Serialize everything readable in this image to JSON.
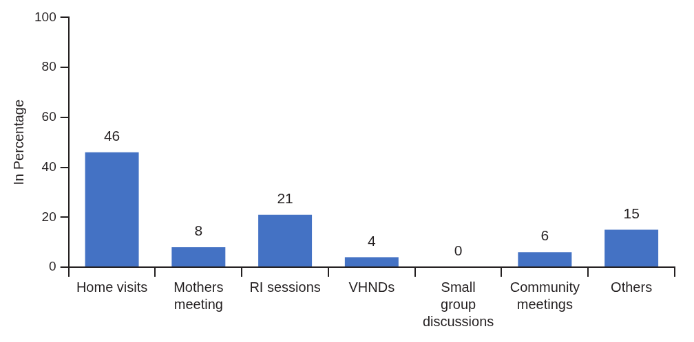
{
  "chart_data": {
    "type": "bar",
    "ylabel": "In Percentage",
    "categories": [
      "Home visits",
      "Mothers meeting",
      "RI sessions",
      "VHNDs",
      "Small group discussions",
      "Community meetings",
      "Others"
    ],
    "values": [
      46,
      8,
      21,
      4,
      0,
      6,
      15
    ],
    "color": "#4472c4",
    "ylim": [
      0,
      100
    ],
    "yticks": [
      0,
      20,
      40,
      60,
      80,
      100
    ],
    "grid": false,
    "legend": false,
    "data_labels": true
  }
}
